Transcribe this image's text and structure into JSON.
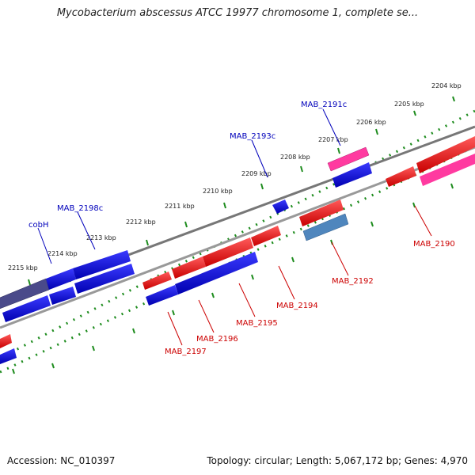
{
  "title": "Mycobacterium abscessus ATCC 19977 chromosome 1, complete se...",
  "accession": "Accession: NC_010397",
  "summary": "Topology: circular; Length: 5,067,172 bp; Genes: 4,970",
  "colors": {
    "forward": "#e00000",
    "reverse": "#0000dd",
    "highlight_pink": "#ff4faa",
    "dark_purple": "#4a4a8a",
    "steel": "#4f86bd",
    "backbone": "#888888",
    "ticks": "#1e8c1e",
    "label_top": "#0000bb",
    "label_bottom": "#cc0000"
  },
  "kbp_labels": [
    "2204 kbp",
    "2205 kbp",
    "2206 kbp",
    "2207 kbp",
    "2208 kbp",
    "2209 kbp",
    "2210 kbp",
    "2211 kbp",
    "2212 kbp",
    "2213 kbp",
    "2214 kbp",
    "2215 kbp"
  ],
  "gene_labels_top": [
    "MAB_2191c",
    "MAB_2193c",
    "MAB_2198c",
    "cobH"
  ],
  "gene_labels_bottom": [
    "MAB_2190",
    "MAB_2192",
    "MAB_2194",
    "MAB_2195",
    "MAB_2196",
    "MAB_2197"
  ]
}
